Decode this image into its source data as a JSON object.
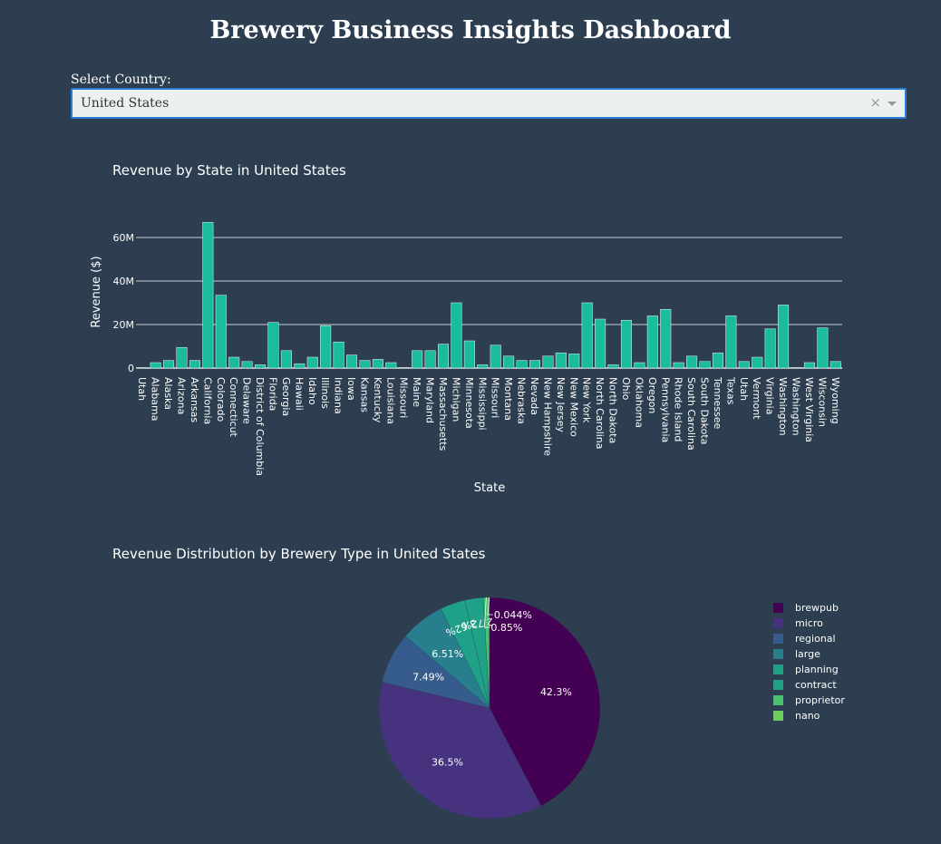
{
  "header": {
    "title": "Brewery Business Insights Dashboard"
  },
  "filter": {
    "label": "Select Country:",
    "selected": "United States",
    "clear_glyph": "×"
  },
  "charts": {
    "bar_title": "Revenue by State in United States",
    "pie_title": "Revenue Distribution by Brewery Type in United States"
  },
  "chart_data": [
    {
      "type": "bar",
      "title": "Revenue by State in United States",
      "xlabel": "State",
      "ylabel": "Revenue ($)",
      "ylim": [
        0,
        70000000
      ],
      "y_ticks": [
        0,
        20000000,
        40000000,
        60000000
      ],
      "y_tick_labels": [
        "0",
        "20M",
        "40M",
        "60M"
      ],
      "grid": true,
      "bar_color": "#1abc9c",
      "categories": [
        "Utah",
        "Alabama",
        "Alaska",
        "Arizona",
        "Arkansas",
        "California",
        "Colorado",
        "Connecticut",
        "Delaware",
        "District of Columbia",
        "Florida",
        "Georgia",
        "Hawaii",
        "Idaho",
        "Illinois",
        "Indiana",
        "Iowa",
        "Kansas",
        "Kentucky",
        "Louisiana",
        "Missouri",
        "Maine",
        "Maryland",
        "Massachusetts",
        "Michigan",
        "Minnesota",
        "Mississippi",
        "Missouri",
        "Montana",
        "Nebraska",
        "Nevada",
        "New Hampshire",
        "New Jersey",
        "New Mexico",
        "New York",
        "North Carolina",
        "North Dakota",
        "Ohio",
        "Oklahoma",
        "Oregon",
        "Pennsylvania",
        "Rhode Island",
        "South Carolina",
        "South Dakota",
        "Tennessee",
        "Texas",
        "Utah",
        "Vermont",
        "Virginia",
        "Washington",
        "Washington",
        "West Virginia",
        "Wisconsin",
        "Wyoming"
      ],
      "values": [
        200000,
        2500000,
        3500000,
        9500000,
        3500000,
        67000000,
        33500000,
        5000000,
        3000000,
        1500000,
        21000000,
        8000000,
        2000000,
        5000000,
        19500000,
        12000000,
        6000000,
        3500000,
        4000000,
        2500000,
        200000,
        8000000,
        8000000,
        11000000,
        30000000,
        12500000,
        1500000,
        10500000,
        5500000,
        3500000,
        3500000,
        5500000,
        7000000,
        6500000,
        30000000,
        22500000,
        1500000,
        22000000,
        2500000,
        24000000,
        27000000,
        2500000,
        5500000,
        3000000,
        7000000,
        24000000,
        3000000,
        5000000,
        18000000,
        29000000,
        200000,
        2500000,
        18500000,
        3000000
      ]
    },
    {
      "type": "pie",
      "title": "Revenue Distribution by Brewery Type in United States",
      "legend_position": "right",
      "labels": [
        "brewpub",
        "micro",
        "regional",
        "large",
        "planning",
        "contract",
        "proprietor",
        "nano"
      ],
      "values": [
        42.3,
        36.5,
        7.49,
        6.51,
        3.62,
        2.72,
        0.85,
        0.044
      ],
      "value_labels": [
        "42.3%",
        "36.5%",
        "7.49%",
        "6.51%",
        "3.62%",
        "2.72%",
        "0.85%",
        "0.044%"
      ],
      "colors": [
        "#440154",
        "#46327e",
        "#365c8d",
        "#277f8e",
        "#1fa187",
        "#1fa187",
        "#4ac16d",
        "#6ccd5a"
      ]
    }
  ]
}
